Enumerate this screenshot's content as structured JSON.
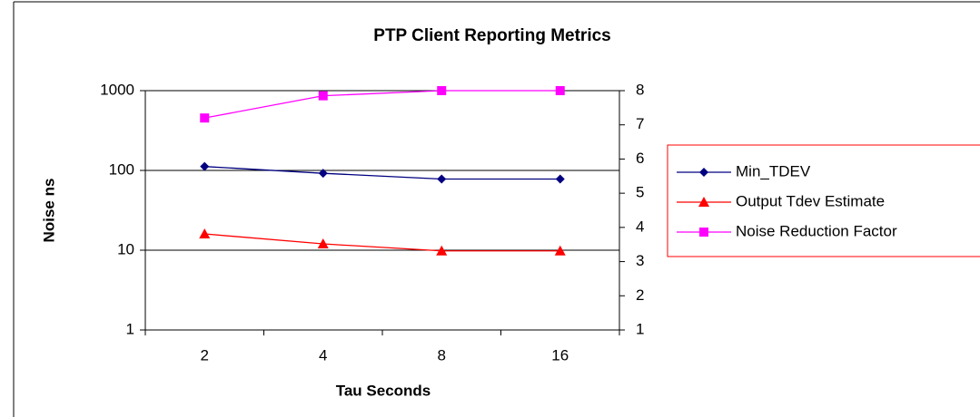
{
  "chart_data": {
    "type": "line",
    "title": "PTP Client Reporting Metrics",
    "x_label": "Tau Seconds",
    "y_label": "Noise ns",
    "categories": [
      "2",
      "4",
      "8",
      "16"
    ],
    "ylog": true,
    "ylim": [
      1,
      1000
    ],
    "yticks": [
      1,
      10,
      100,
      1000
    ],
    "y2lim": [
      1,
      8
    ],
    "y2ticks": [
      1,
      2,
      3,
      4,
      5,
      6,
      7,
      8
    ],
    "grid": true,
    "legend": "right",
    "series": [
      {
        "name": "Min_TDEV",
        "color": "#000080",
        "marker": "diamond",
        "values": [
          112,
          92,
          78,
          78
        ]
      },
      {
        "name": "Output Tdev Estimate",
        "color": "#ff0000",
        "marker": "triangle",
        "values": [
          16,
          12,
          9.8,
          9.8
        ]
      },
      {
        "name": "Noise Reduction Factor",
        "color": "#ff00ff",
        "marker": "square",
        "axis": "y2",
        "values": [
          7.2,
          7.85,
          8,
          8
        ]
      }
    ]
  }
}
